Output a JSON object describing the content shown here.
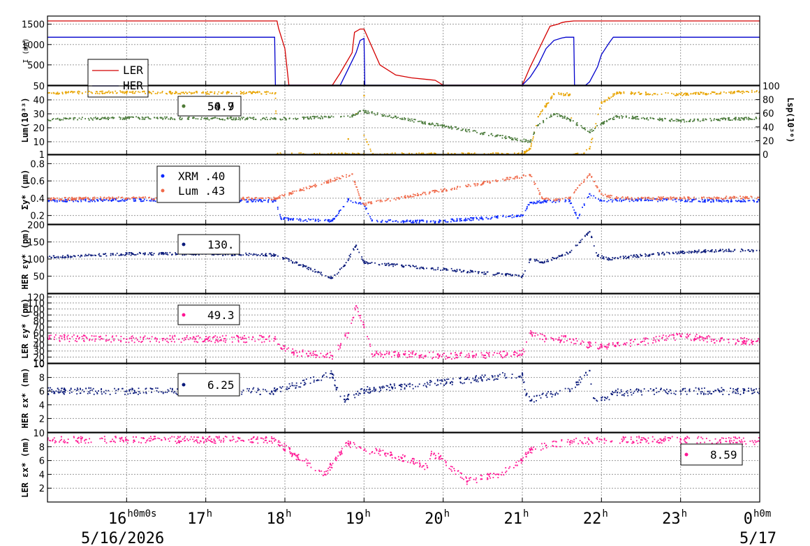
{
  "time_axis": {
    "start_label": "16h0m0s",
    "ticks": [
      {
        "t": 16,
        "label": "16",
        "sup": "h0m0s"
      },
      {
        "t": 17,
        "label": "17",
        "sup": "h"
      },
      {
        "t": 18,
        "label": "18",
        "sup": "h"
      },
      {
        "t": 19,
        "label": "19",
        "sup": "h"
      },
      {
        "t": 20,
        "label": "20",
        "sup": "h"
      },
      {
        "t": 21,
        "label": "21",
        "sup": "h"
      },
      {
        "t": 22,
        "label": "22",
        "sup": "h"
      },
      {
        "t": 23,
        "label": "23",
        "sup": "h"
      },
      {
        "t": 24,
        "label": "0",
        "sup": "h0m"
      }
    ],
    "date_left": "5/16/2026",
    "date_right": "5/17"
  },
  "chart_data": [
    {
      "type": "line",
      "ylabel": "I (mA)",
      "xlim": [
        15.0,
        24.0
      ],
      "ylim": [
        0,
        1700
      ],
      "yticks": [
        500,
        1000,
        1500
      ],
      "series": [
        {
          "name": "LER",
          "color": "#d40000",
          "x": [
            15.0,
            17.9,
            17.92,
            18.0,
            18.05,
            18.6,
            18.7,
            18.85,
            18.88,
            18.95,
            19.0,
            19.2,
            19.4,
            19.6,
            19.8,
            19.9,
            20.0,
            21.0,
            21.1,
            21.2,
            21.3,
            21.35,
            21.45,
            21.5,
            21.55,
            21.65,
            22.0,
            24.0
          ],
          "y": [
            1580,
            1580,
            1400,
            900,
            0,
            0,
            300,
            800,
            1300,
            1380,
            1380,
            500,
            250,
            180,
            140,
            120,
            0,
            0,
            450,
            850,
            1250,
            1450,
            1500,
            1540,
            1560,
            1580,
            1580,
            1580
          ]
        },
        {
          "name": "HER",
          "color": "#0000cc",
          "x": [
            15.0,
            17.87,
            17.88,
            18.0,
            18.7,
            18.8,
            18.9,
            18.95,
            19.0,
            19.01,
            21.0,
            21.1,
            21.2,
            21.3,
            21.4,
            21.5,
            21.55,
            21.65,
            21.66,
            21.8,
            21.85,
            21.95,
            22.0,
            22.1,
            22.15,
            24.0
          ],
          "y": [
            1180,
            1180,
            0,
            0,
            0,
            400,
            800,
            1100,
            1150,
            0,
            0,
            200,
            500,
            900,
            1100,
            1160,
            1180,
            1180,
            0,
            0,
            80,
            450,
            750,
            1050,
            1180,
            1180
          ]
        }
      ]
    },
    {
      "type": "scatter",
      "ylabel": "Lum(10³³)",
      "ylabel_right": "Lsp(10³⁰)",
      "xlim": [
        15.0,
        24.0
      ],
      "ylim": [
        1,
        50
      ],
      "yticks": [
        1,
        10,
        20,
        30,
        40,
        50
      ],
      "yticks_right": [
        0,
        20,
        40,
        60,
        80,
        100
      ],
      "series": [
        {
          "name": "Lum",
          "color": "#e8a400",
          "x": [
            15.0,
            16.0,
            17.0,
            17.88,
            17.9,
            18.0,
            19.0,
            19.0,
            18.8,
            18.9,
            19.1,
            20.0,
            21.0,
            21.1,
            21.2,
            21.4,
            21.6,
            21.65,
            21.75,
            21.85,
            22.0,
            22.2,
            23.0,
            24.0
          ],
          "y": [
            45,
            45.5,
            45,
            45,
            1,
            1,
            1,
            43,
            12,
            30,
            1,
            1,
            1,
            5,
            28,
            44,
            44,
            1,
            1,
            5,
            38,
            45,
            44,
            46
          ]
        },
        {
          "name": "Lsp",
          "color": "#4a7a3a",
          "x": [
            15.0,
            16.0,
            17.0,
            17.88,
            18.85,
            18.95,
            21.1,
            21.2,
            21.4,
            21.6,
            21.85,
            22.0,
            22.2,
            23.0,
            24.0
          ],
          "y": [
            26,
            27,
            26.5,
            26.5,
            28,
            32,
            10,
            22,
            30,
            26,
            17,
            23,
            28,
            25,
            27
          ]
        }
      ],
      "legend_values": [
        "54.9",
        "50.7"
      ]
    },
    {
      "type": "scatter",
      "ylabel": "Σy* (μm)",
      "xlim": [
        15.0,
        24.0
      ],
      "ylim": [
        0.1,
        0.9
      ],
      "yticks": [
        0.2,
        0.4,
        0.6,
        0.8
      ],
      "series": [
        {
          "name": "XRM",
          "color": "#0a28ff",
          "x": [
            15.0,
            16.0,
            17.0,
            17.88,
            17.95,
            18.1,
            18.6,
            18.8,
            19.0,
            19.1,
            19.5,
            19.9,
            21.0,
            21.1,
            21.3,
            21.6,
            21.7,
            21.85,
            22.0,
            22.5,
            23.5,
            24.0
          ],
          "y": [
            0.37,
            0.38,
            0.37,
            0.37,
            0.17,
            0.15,
            0.14,
            0.38,
            0.33,
            0.14,
            0.13,
            0.13,
            0.2,
            0.35,
            0.36,
            0.37,
            0.17,
            0.45,
            0.37,
            0.38,
            0.37,
            0.37
          ],
          "legend": "XRM  .40"
        },
        {
          "name": "Lum",
          "color": "#f06a4a",
          "x": [
            15.0,
            16.0,
            17.0,
            17.88,
            18.85,
            18.95,
            19.0,
            21.1,
            21.25,
            21.4,
            21.6,
            21.85,
            22.0,
            22.2,
            23.0,
            24.0
          ],
          "y": [
            0.39,
            0.4,
            0.39,
            0.4,
            0.68,
            0.4,
            0.33,
            0.67,
            0.4,
            0.38,
            0.4,
            0.68,
            0.45,
            0.4,
            0.4,
            0.41
          ],
          "legend": "Lum  .43"
        }
      ]
    },
    {
      "type": "scatter",
      "ylabel": "HER εy* (pm)",
      "xlim": [
        15.0,
        24.0
      ],
      "ylim": [
        0,
        200
      ],
      "yticks": [
        50,
        100,
        150,
        200
      ],
      "series": [
        {
          "name": "HER",
          "color": "#0a1a7a",
          "x": [
            15.0,
            16.0,
            17.0,
            17.88,
            18.6,
            18.75,
            18.9,
            19.0,
            21.0,
            21.1,
            21.25,
            21.5,
            21.6,
            21.85,
            21.95,
            22.1,
            22.5,
            23.0,
            23.5,
            24.0
          ],
          "y": [
            105,
            115,
            115,
            112,
            45,
            80,
            140,
            90,
            50,
            100,
            90,
            110,
            120,
            180,
            110,
            100,
            110,
            120,
            125,
            125
          ],
          "legend": "130."
        }
      ]
    },
    {
      "type": "scatter",
      "ylabel": "LER εy* (pm)",
      "xlim": [
        15.0,
        24.0
      ],
      "ylim": [
        10,
        125
      ],
      "yticks": [
        10,
        20,
        30,
        40,
        50,
        60,
        70,
        80,
        90,
        100,
        110,
        120
      ],
      "series": [
        {
          "name": "LER",
          "color": "#ff1493",
          "x": [
            15.0,
            16.0,
            17.0,
            17.88,
            17.95,
            18.1,
            18.6,
            18.8,
            18.9,
            19.0,
            19.1,
            19.5,
            19.95,
            21.0,
            21.1,
            21.3,
            21.6,
            21.85,
            22.0,
            22.5,
            23.0,
            23.5,
            24.0
          ],
          "y": [
            52,
            50,
            50,
            50,
            35,
            28,
            22,
            60,
            105,
            70,
            25,
            25,
            22,
            25,
            60,
            50,
            50,
            40,
            38,
            45,
            55,
            48,
            45
          ],
          "legend": "49.3"
        }
      ]
    },
    {
      "type": "scatter",
      "ylabel": "HER εx* (nm)",
      "xlim": [
        15.0,
        24.0
      ],
      "ylim": [
        0,
        10
      ],
      "yticks": [
        2,
        4,
        6,
        8,
        10
      ],
      "series": [
        {
          "name": "HER",
          "color": "#0a1a7a",
          "x": [
            15.0,
            16.0,
            17.0,
            17.88,
            18.6,
            18.65,
            18.75,
            18.9,
            19.0,
            21.0,
            21.05,
            21.1,
            21.3,
            21.6,
            21.85,
            21.9,
            22.0,
            22.2,
            23.0,
            24.0
          ],
          "y": [
            6.0,
            6.0,
            6.0,
            6.0,
            8.5,
            6.5,
            4.8,
            5.6,
            6.1,
            8.5,
            5.5,
            4.6,
            5.4,
            6.0,
            9.0,
            5.0,
            4.7,
            5.8,
            6.0,
            6.0
          ],
          "legend": "6.25"
        }
      ]
    },
    {
      "type": "scatter",
      "ylabel": "LER εx* (nm)",
      "xlim": [
        15.0,
        24.0
      ],
      "ylim": [
        0,
        10
      ],
      "yticks": [
        2,
        4,
        6,
        8,
        10
      ],
      "series": [
        {
          "name": "LER",
          "color": "#ff1493",
          "x": [
            15.0,
            16.0,
            17.0,
            17.88,
            18.1,
            18.5,
            18.8,
            19.0,
            19.3,
            19.6,
            19.8,
            19.85,
            19.95,
            20.3,
            20.7,
            21.0,
            21.1,
            21.3,
            21.6,
            22.0,
            22.5,
            23.0,
            23.5,
            24.0
          ],
          "y": [
            9.0,
            9.0,
            9.0,
            9.0,
            7.0,
            4.0,
            8.5,
            7.5,
            7.0,
            6.0,
            5.0,
            7.0,
            6.5,
            3.0,
            4.0,
            6.0,
            7.5,
            8.2,
            8.7,
            9.0,
            9.0,
            9.0,
            9.0,
            8.8
          ],
          "legend": "8.59"
        }
      ]
    }
  ]
}
